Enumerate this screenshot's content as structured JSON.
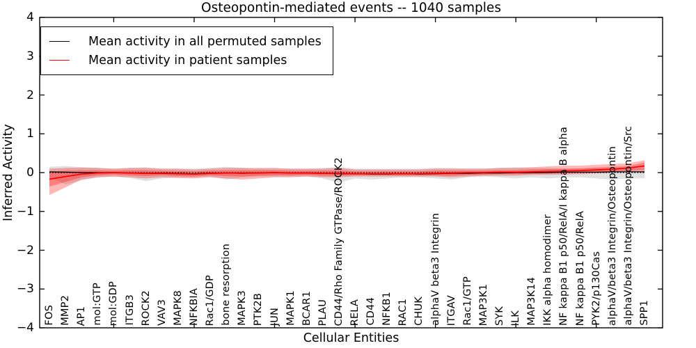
{
  "title": "Osteopontin-mediated events -- 1040 samples",
  "axes": {
    "xlabel": "Cellular Entities",
    "ylabel": "Inferred Activity",
    "ylim": [
      -4,
      4
    ],
    "yticks": [
      4,
      3,
      2,
      1,
      0,
      -1,
      -2,
      -3,
      -4
    ]
  },
  "legend": {
    "position": "upper left",
    "items": [
      {
        "label": "Mean activity in all permuted samples",
        "color": "#000000"
      },
      {
        "label": "Mean activity in patient samples",
        "color": "#ff0000"
      }
    ]
  },
  "chart_data": {
    "type": "line",
    "title": "Osteopontin-mediated events -- 1040 samples",
    "xlabel": "Cellular Entities",
    "ylabel": "Inferred Activity",
    "ylim": [
      -4,
      4
    ],
    "yticks": [
      4,
      3,
      2,
      1,
      0,
      -1,
      -2,
      -3,
      -4
    ],
    "grid": false,
    "legend_position": "upper left",
    "categories": [
      "FOS",
      "MMP2",
      "AP1",
      "mol:GTP",
      "mol:GDP",
      "ITGB3",
      "ROCK2",
      "VAV3",
      "MAPK8",
      "NFKBIA",
      "Rac1/GDP",
      "bone resorption",
      "MAPK3",
      "PTK2B",
      "JUN",
      "MAPK1",
      "BCAR1",
      "PLAU",
      "CD44/Rho Family GTPase/ROCK2",
      "RELA",
      "CD44",
      "NFKB1",
      "RAC1",
      "CHUK",
      "alphaV beta3 Integrin",
      "ITGAV",
      "Rac1/GTP",
      "MAP3K1",
      "SYK",
      "ILK",
      "MAP3K14",
      "IKK alpha homodimer",
      "NF kappa B1 p50/RelA/I kappa B alpha",
      "NF kappa B1 p50/RelA",
      "PYK2/p130Cas",
      "alphaV/beta3 Integrin/Osteopontin",
      "alphaV/beta3 Integrin/Osteopontin/Src",
      "SPP1"
    ],
    "x_major_tick_indices": [
      4,
      9,
      14,
      19,
      24,
      29,
      34
    ],
    "series": [
      {
        "name": "Mean activity in all permuted samples",
        "color": "#000000",
        "style": "solid",
        "width": 1.2,
        "values": [
          0.02,
          0.01,
          0.0,
          0.0,
          0.0,
          -0.01,
          -0.02,
          -0.01,
          -0.02,
          -0.03,
          -0.01,
          -0.01,
          -0.02,
          -0.01,
          0.0,
          -0.01,
          -0.01,
          -0.02,
          -0.03,
          -0.03,
          -0.04,
          -0.04,
          -0.03,
          -0.04,
          -0.03,
          -0.02,
          -0.02,
          -0.01,
          -0.01,
          0.0,
          0.0,
          0.0,
          0.01,
          0.01,
          0.01,
          0.02,
          0.02,
          0.02
        ]
      },
      {
        "name": "Mean activity in patient samples",
        "color": "#ff0000",
        "style": "solid",
        "width": 1.7,
        "values": [
          -0.17,
          -0.1,
          -0.04,
          -0.01,
          0.0,
          -0.01,
          -0.02,
          -0.02,
          -0.03,
          -0.04,
          -0.02,
          -0.01,
          -0.01,
          -0.01,
          0.0,
          -0.01,
          -0.01,
          -0.02,
          -0.02,
          -0.03,
          -0.03,
          -0.03,
          -0.03,
          -0.03,
          -0.02,
          -0.01,
          0.0,
          0.0,
          0.01,
          0.01,
          0.02,
          0.03,
          0.04,
          0.05,
          0.07,
          0.09,
          0.12,
          0.17
        ]
      },
      {
        "name": "zero reference",
        "color": "#000000",
        "style": "dotted",
        "width": 1.3,
        "values": [
          0,
          0,
          0,
          0,
          0,
          0,
          0,
          0,
          0,
          0,
          0,
          0,
          0,
          0,
          0,
          0,
          0,
          0,
          0,
          0,
          0,
          0,
          0,
          0,
          0,
          0,
          0,
          0,
          0,
          0,
          0,
          0,
          0,
          0,
          0,
          0,
          0,
          0
        ]
      }
    ],
    "bands": [
      {
        "name": "permuted samples spread",
        "color": "#aaaaaa",
        "opacity": 0.35,
        "upper": [
          0.15,
          0.17,
          0.14,
          0.12,
          0.1,
          0.12,
          0.14,
          0.1,
          0.1,
          0.1,
          0.12,
          0.15,
          0.12,
          0.1,
          0.1,
          0.1,
          0.1,
          0.12,
          0.14,
          0.1,
          0.1,
          0.1,
          0.1,
          0.1,
          0.12,
          0.12,
          0.1,
          0.1,
          0.12,
          0.14,
          0.12,
          0.12,
          0.1,
          0.1,
          0.12,
          0.1,
          0.1,
          0.1
        ],
        "lower": [
          -0.13,
          -0.3,
          -0.2,
          -0.12,
          -0.1,
          -0.14,
          -0.22,
          -0.15,
          -0.12,
          -0.12,
          -0.1,
          -0.18,
          -0.12,
          -0.1,
          -0.1,
          -0.1,
          -0.1,
          -0.15,
          -0.26,
          -0.15,
          -0.18,
          -0.15,
          -0.12,
          -0.12,
          -0.15,
          -0.18,
          -0.12,
          -0.1,
          -0.12,
          -0.15,
          -0.12,
          -0.15,
          -0.12,
          -0.12,
          -0.15,
          -0.18,
          -0.15,
          -0.15
        ]
      },
      {
        "name": "patient samples spread (outer)",
        "color": "#ff0000",
        "opacity": 0.28,
        "upper": [
          0.1,
          0.12,
          0.13,
          0.12,
          0.1,
          0.12,
          0.12,
          0.1,
          0.1,
          0.08,
          0.1,
          0.12,
          0.12,
          0.12,
          0.12,
          0.1,
          0.1,
          0.1,
          0.12,
          0.08,
          0.08,
          0.08,
          0.08,
          0.08,
          0.1,
          0.1,
          0.1,
          0.1,
          0.12,
          0.12,
          0.14,
          0.16,
          0.18,
          0.18,
          0.2,
          0.22,
          0.24,
          0.32
        ],
        "lower": [
          -0.58,
          -0.38,
          -0.18,
          -0.12,
          -0.1,
          -0.12,
          -0.15,
          -0.12,
          -0.14,
          -0.15,
          -0.12,
          -0.15,
          -0.18,
          -0.15,
          -0.12,
          -0.12,
          -0.1,
          -0.12,
          -0.12,
          -0.1,
          -0.1,
          -0.1,
          -0.1,
          -0.1,
          -0.1,
          -0.12,
          -0.1,
          -0.08,
          -0.08,
          -0.08,
          -0.06,
          -0.06,
          -0.05,
          -0.04,
          -0.02,
          0.0,
          0.02,
          0.0
        ]
      },
      {
        "name": "patient samples spread (inner)",
        "color": "#ff0000",
        "opacity": 0.3,
        "upper": [
          0.02,
          0.05,
          0.06,
          0.06,
          0.05,
          0.06,
          0.06,
          0.05,
          0.04,
          0.03,
          0.05,
          0.06,
          0.06,
          0.06,
          0.06,
          0.05,
          0.05,
          0.05,
          0.06,
          0.03,
          0.03,
          0.03,
          0.03,
          0.03,
          0.05,
          0.05,
          0.05,
          0.05,
          0.06,
          0.06,
          0.08,
          0.09,
          0.1,
          0.11,
          0.13,
          0.15,
          0.17,
          0.26
        ],
        "lower": [
          -0.36,
          -0.24,
          -0.12,
          -0.07,
          -0.05,
          -0.07,
          -0.09,
          -0.07,
          -0.09,
          -0.1,
          -0.07,
          -0.09,
          -0.1,
          -0.08,
          -0.07,
          -0.07,
          -0.06,
          -0.08,
          -0.08,
          -0.07,
          -0.07,
          -0.07,
          -0.07,
          -0.07,
          -0.07,
          -0.08,
          -0.06,
          -0.05,
          -0.04,
          -0.04,
          -0.03,
          -0.02,
          -0.01,
          0.0,
          0.02,
          0.03,
          0.05,
          0.08
        ]
      }
    ]
  }
}
